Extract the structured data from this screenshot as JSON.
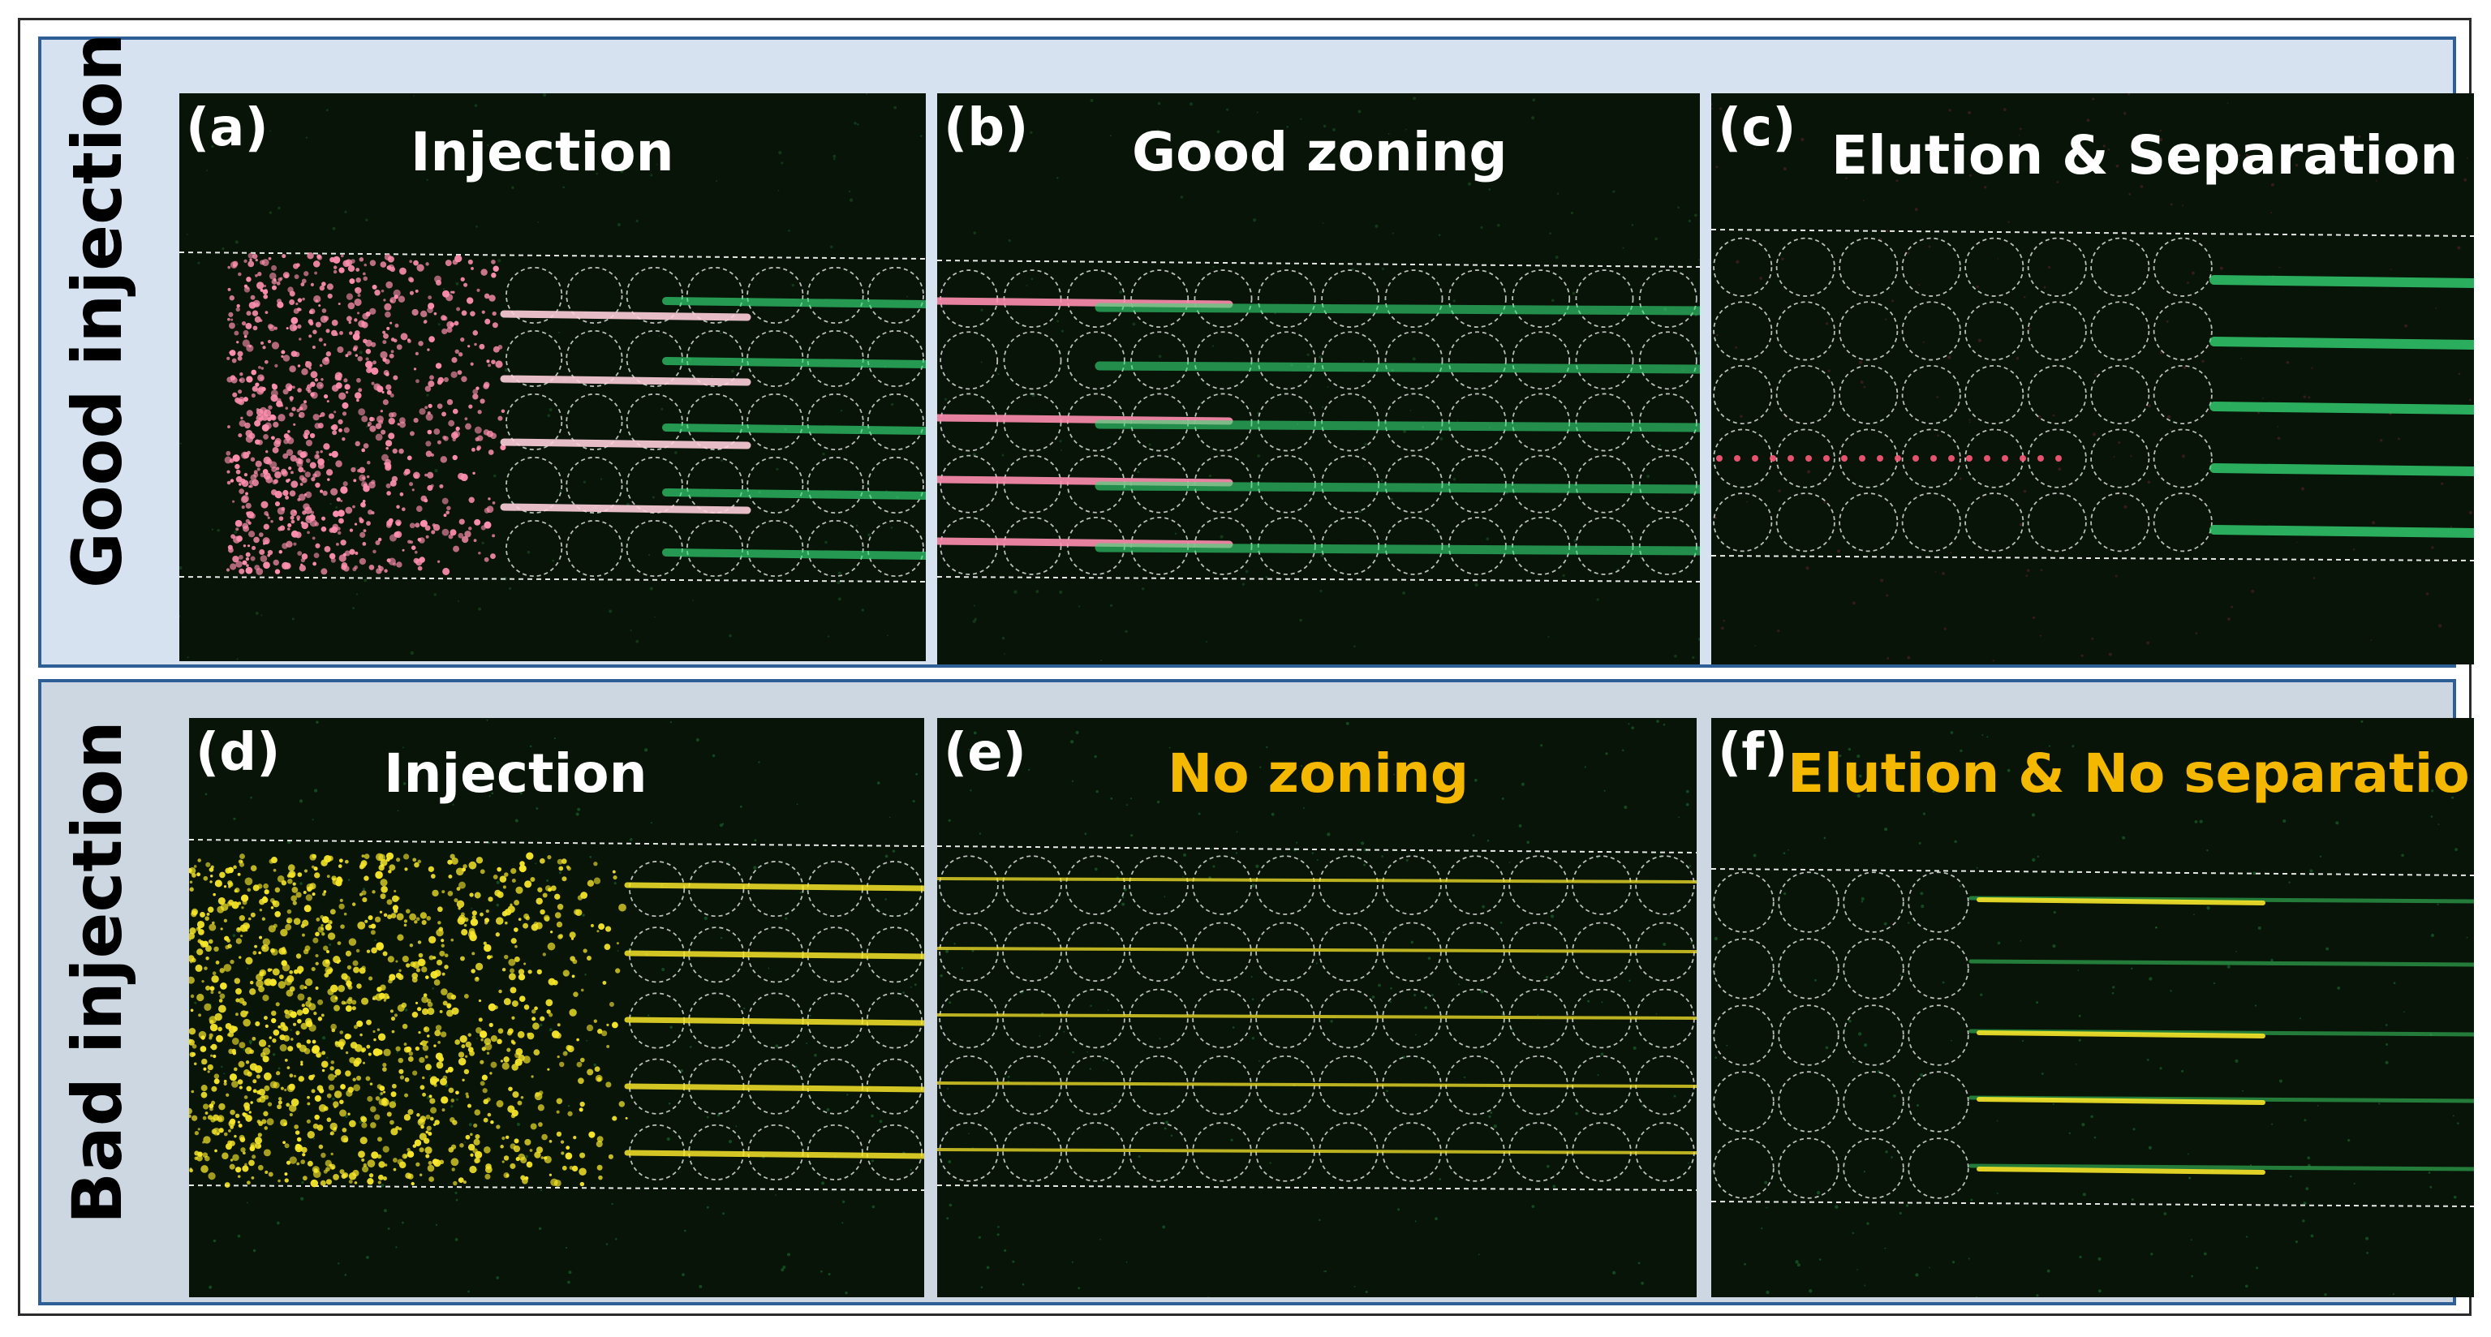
{
  "groups": [
    {
      "id": "good",
      "label": "Good injection",
      "bg": "#d6e2f0"
    },
    {
      "id": "bad",
      "label": "Bad injection",
      "bg": "#cdd7e2"
    }
  ],
  "panels": [
    {
      "letter": "(a)",
      "title": "Injection",
      "title_color": "#ffffff",
      "particle_color": "#ff8fb0",
      "stream_color": "#36e07a"
    },
    {
      "letter": "(b)",
      "title": "Good zoning",
      "title_color": "#ffffff",
      "particle_color": "#ff8fb0",
      "stream_color": "#36e07a"
    },
    {
      "letter": "(c)",
      "title": "Elution & Separation",
      "title_color": "#ffffff",
      "particle_color": "#ff5a7a",
      "stream_color": "#36e07a"
    },
    {
      "letter": "(d)",
      "title": "Injection",
      "title_color": "#ffffff",
      "particle_color": "#f7e62a",
      "stream_color": "#2fa84f"
    },
    {
      "letter": "(e)",
      "title": "No zoning",
      "title_color": "#f5b800",
      "particle_color": "#f7e62a",
      "stream_color": "#2fa84f"
    },
    {
      "letter": "(f)",
      "title": "Elution & No separation",
      "title_color": "#f5b800",
      "particle_color": "#f7e62a",
      "stream_color": "#2fa84f"
    }
  ]
}
